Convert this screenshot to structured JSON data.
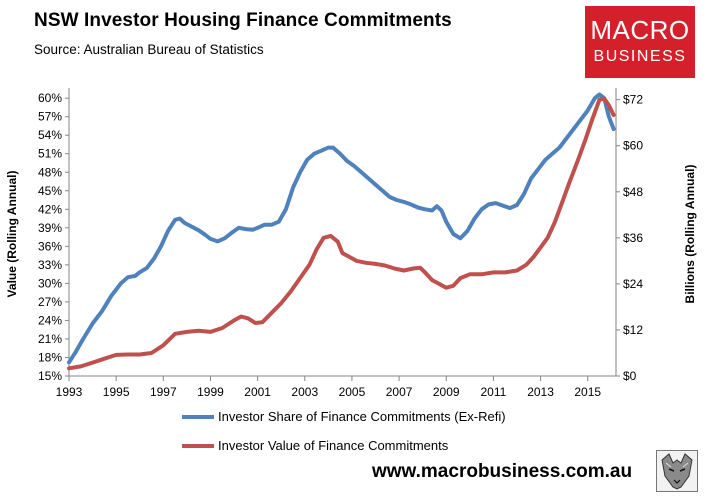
{
  "header": {
    "title": "NSW Investor Housing Finance Commitments",
    "subtitle": "Source: Australian Bureau of Statistics"
  },
  "logo": {
    "line1": "MACRO",
    "line2": "BUSINESS"
  },
  "footer": {
    "url": "www.macrobusiness.com.au"
  },
  "colors": {
    "share_series": "#4f81bd",
    "value_series": "#c0504d",
    "logo_bg": "#d3202b"
  },
  "chart_data": {
    "type": "line",
    "title": "NSW Investor Housing Finance Commitments",
    "xlabel": "",
    "ylabel_left": "Value (Rolling Annual)",
    "ylabel_right": "Billions (Rolling Annual)",
    "xlim": [
      1993,
      2016.2
    ],
    "ylim_left": [
      15,
      61
    ],
    "ylim_right": [
      0,
      74
    ],
    "x_ticks": [
      "1993",
      "1995",
      "1997",
      "1999",
      "2001",
      "2003",
      "2005",
      "2007",
      "2009",
      "2011",
      "2013",
      "2015"
    ],
    "y_left_ticks": [
      "15%",
      "18%",
      "21%",
      "24%",
      "27%",
      "30%",
      "33%",
      "36%",
      "39%",
      "42%",
      "45%",
      "48%",
      "51%",
      "54%",
      "57%",
      "60%"
    ],
    "y_right_ticks": [
      "$0",
      "$12",
      "$24",
      "$36",
      "$48",
      "$60",
      "$72"
    ],
    "grid": false,
    "legend_position": "bottom",
    "series": [
      {
        "name": "Investor Share of Finance Commitments (Ex-Refi)",
        "axis": "left",
        "points": [
          [
            1993.0,
            17.2
          ],
          [
            1993.3,
            19.0
          ],
          [
            1993.6,
            21.0
          ],
          [
            1994.0,
            23.5
          ],
          [
            1994.4,
            25.5
          ],
          [
            1994.8,
            28.0
          ],
          [
            1995.2,
            30.0
          ],
          [
            1995.5,
            31.0
          ],
          [
            1995.8,
            31.2
          ],
          [
            1996.0,
            31.8
          ],
          [
            1996.3,
            32.5
          ],
          [
            1996.6,
            34.0
          ],
          [
            1996.9,
            36.0
          ],
          [
            1997.2,
            38.5
          ],
          [
            1997.5,
            40.3
          ],
          [
            1997.7,
            40.5
          ],
          [
            1997.9,
            39.8
          ],
          [
            1998.2,
            39.2
          ],
          [
            1998.5,
            38.6
          ],
          [
            1998.8,
            37.8
          ],
          [
            1999.0,
            37.2
          ],
          [
            1999.3,
            36.8
          ],
          [
            1999.6,
            37.3
          ],
          [
            1999.9,
            38.2
          ],
          [
            2000.2,
            39.0
          ],
          [
            2000.5,
            38.8
          ],
          [
            2000.8,
            38.7
          ],
          [
            2001.0,
            39.0
          ],
          [
            2001.3,
            39.5
          ],
          [
            2001.6,
            39.5
          ],
          [
            2001.9,
            40.0
          ],
          [
            2002.2,
            42.0
          ],
          [
            2002.5,
            45.5
          ],
          [
            2002.8,
            48.0
          ],
          [
            2003.1,
            50.0
          ],
          [
            2003.4,
            51.0
          ],
          [
            2003.7,
            51.5
          ],
          [
            2004.0,
            52.0
          ],
          [
            2004.2,
            52.0
          ],
          [
            2004.5,
            51.0
          ],
          [
            2004.8,
            49.8
          ],
          [
            2005.1,
            49.0
          ],
          [
            2005.4,
            48.0
          ],
          [
            2005.7,
            47.0
          ],
          [
            2006.0,
            46.0
          ],
          [
            2006.3,
            45.0
          ],
          [
            2006.6,
            44.0
          ],
          [
            2006.9,
            43.5
          ],
          [
            2007.2,
            43.2
          ],
          [
            2007.5,
            42.8
          ],
          [
            2007.8,
            42.3
          ],
          [
            2008.1,
            42.0
          ],
          [
            2008.4,
            41.8
          ],
          [
            2008.6,
            42.5
          ],
          [
            2008.8,
            41.8
          ],
          [
            2009.0,
            40.0
          ],
          [
            2009.3,
            38.0
          ],
          [
            2009.6,
            37.3
          ],
          [
            2009.9,
            38.5
          ],
          [
            2010.2,
            40.5
          ],
          [
            2010.5,
            42.0
          ],
          [
            2010.8,
            42.8
          ],
          [
            2011.1,
            43.0
          ],
          [
            2011.4,
            42.6
          ],
          [
            2011.7,
            42.2
          ],
          [
            2012.0,
            42.7
          ],
          [
            2012.3,
            44.5
          ],
          [
            2012.6,
            47.0
          ],
          [
            2012.9,
            48.5
          ],
          [
            2013.2,
            50.0
          ],
          [
            2013.5,
            51.0
          ],
          [
            2013.8,
            52.0
          ],
          [
            2014.1,
            53.5
          ],
          [
            2014.4,
            55.0
          ],
          [
            2014.7,
            56.5
          ],
          [
            2015.0,
            58.0
          ],
          [
            2015.3,
            60.0
          ],
          [
            2015.5,
            60.6
          ],
          [
            2015.7,
            60.0
          ],
          [
            2015.9,
            57.0
          ],
          [
            2016.1,
            55.0
          ]
        ]
      },
      {
        "name": "Investor Value of Finance Commitments",
        "axis": "right",
        "points": [
          [
            1993.0,
            2.0
          ],
          [
            1993.5,
            2.5
          ],
          [
            1994.0,
            3.5
          ],
          [
            1994.5,
            4.5
          ],
          [
            1995.0,
            5.5
          ],
          [
            1995.5,
            5.6
          ],
          [
            1996.0,
            5.6
          ],
          [
            1996.5,
            6.0
          ],
          [
            1997.0,
            8.0
          ],
          [
            1997.5,
            11.0
          ],
          [
            1998.0,
            11.5
          ],
          [
            1998.5,
            11.8
          ],
          [
            1999.0,
            11.5
          ],
          [
            1999.5,
            12.5
          ],
          [
            2000.0,
            14.5
          ],
          [
            2000.3,
            15.5
          ],
          [
            2000.6,
            15.0
          ],
          [
            2000.9,
            13.8
          ],
          [
            2001.2,
            14.0
          ],
          [
            2001.6,
            16.5
          ],
          [
            2002.0,
            19.0
          ],
          [
            2002.4,
            22.0
          ],
          [
            2002.8,
            25.5
          ],
          [
            2003.2,
            29.0
          ],
          [
            2003.5,
            33.0
          ],
          [
            2003.8,
            36.0
          ],
          [
            2004.1,
            36.5
          ],
          [
            2004.4,
            35.0
          ],
          [
            2004.6,
            32.0
          ],
          [
            2004.9,
            31.0
          ],
          [
            2005.2,
            30.0
          ],
          [
            2005.6,
            29.5
          ],
          [
            2006.0,
            29.2
          ],
          [
            2006.4,
            28.8
          ],
          [
            2006.8,
            28.0
          ],
          [
            2007.2,
            27.5
          ],
          [
            2007.6,
            28.0
          ],
          [
            2007.9,
            28.2
          ],
          [
            2008.1,
            27.0
          ],
          [
            2008.4,
            25.0
          ],
          [
            2008.7,
            24.0
          ],
          [
            2009.0,
            23.0
          ],
          [
            2009.3,
            23.5
          ],
          [
            2009.6,
            25.5
          ],
          [
            2010.0,
            26.5
          ],
          [
            2010.5,
            26.5
          ],
          [
            2011.0,
            27.0
          ],
          [
            2011.5,
            27.0
          ],
          [
            2012.0,
            27.5
          ],
          [
            2012.4,
            29.0
          ],
          [
            2012.7,
            31.0
          ],
          [
            2013.0,
            33.5
          ],
          [
            2013.3,
            36.0
          ],
          [
            2013.6,
            40.0
          ],
          [
            2013.9,
            45.0
          ],
          [
            2014.2,
            50.0
          ],
          [
            2014.6,
            56.5
          ],
          [
            2014.9,
            61.5
          ],
          [
            2015.2,
            67.0
          ],
          [
            2015.5,
            72.0
          ],
          [
            2015.7,
            72.3
          ],
          [
            2015.9,
            70.5
          ],
          [
            2016.1,
            68.0
          ]
        ]
      }
    ]
  }
}
